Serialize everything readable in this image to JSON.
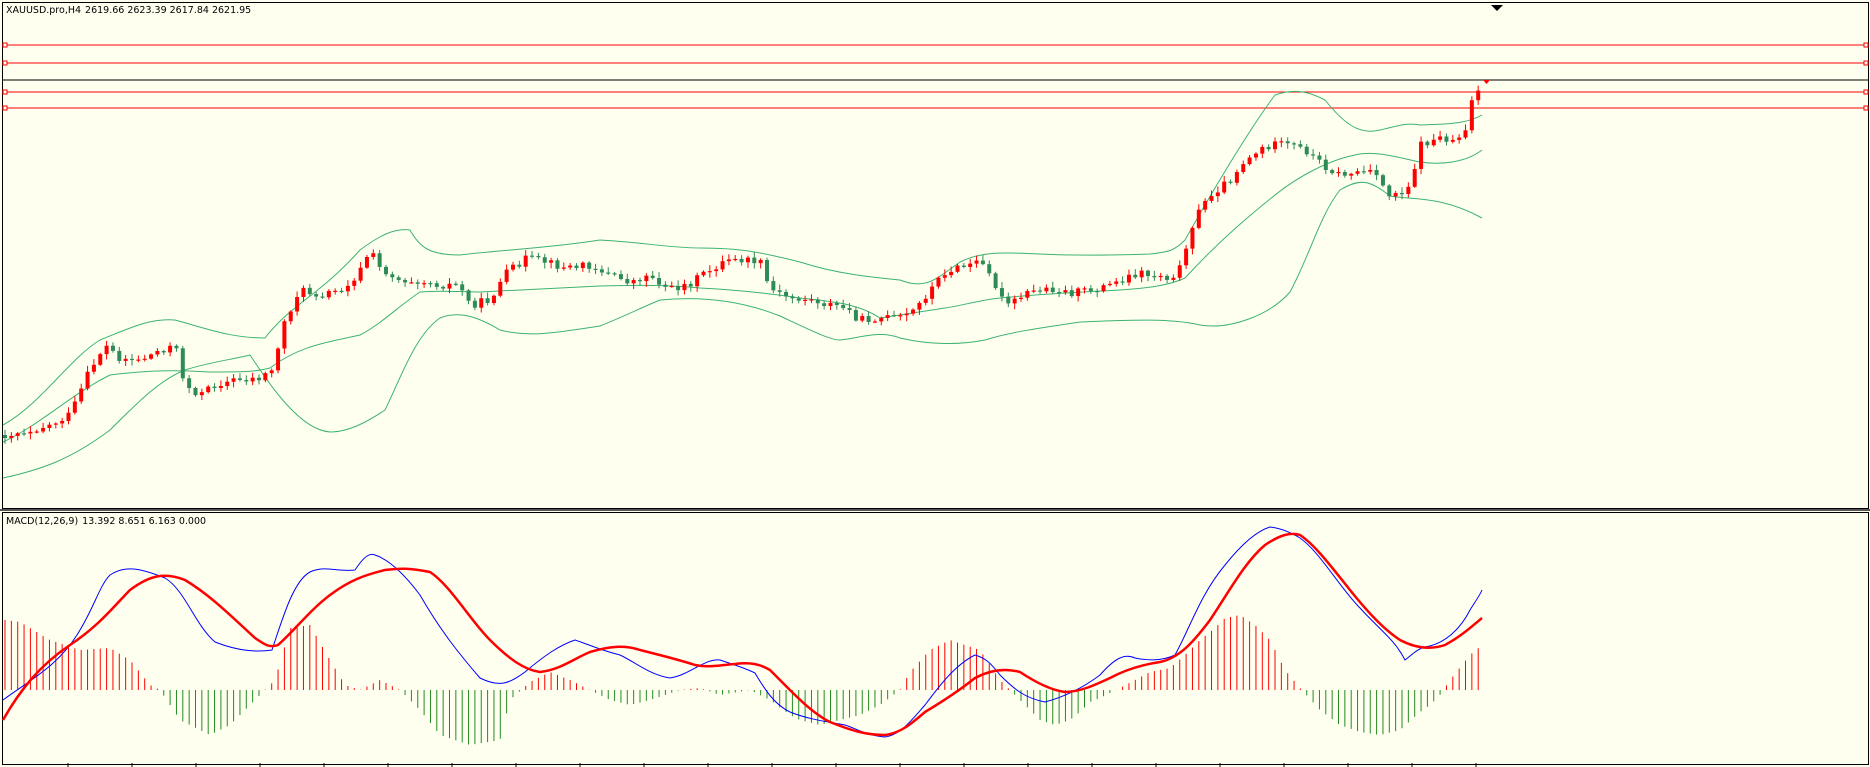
{
  "main_chart": {
    "symbol_header": "XAUUSD.pro,H4",
    "ohlc_header": "2619.66 2623.39 2617.84 2621.95"
  },
  "macd_panel": {
    "indicator_header": "MACD(12,26,9)",
    "values_header": "13.392 8.651 6.163 0.000"
  },
  "colors": {
    "background": "#fffff0",
    "bull_candle": "#ff0000",
    "bear_candle": "#2e8b57",
    "bands": "#3cb371",
    "horizontal_levels": "#ff0000",
    "current_price_line": "#000000",
    "macd_line": "#0000ff",
    "signal_line": "#ff0000",
    "histogram_positive": "#ff0000",
    "histogram_negative": "#228b22"
  },
  "chart_data": [
    {
      "type": "candlestick",
      "title": "XAUUSD.pro,H4",
      "last_bar": {
        "open": 2619.66,
        "high": 2623.39,
        "low": 2617.84,
        "close": 2621.95
      },
      "overlays": [
        "Bollinger Bands"
      ],
      "horizontal_levels": 5,
      "ylim": [
        2380,
        2650
      ],
      "grid": false
    },
    {
      "type": "line",
      "title": "MACD(12,26,9)",
      "series": [
        {
          "name": "MACD",
          "last": 13.392
        },
        {
          "name": "Signal",
          "last": 8.651
        },
        {
          "name": "Histogram",
          "last": 6.163
        }
      ],
      "grid": false
    }
  ]
}
